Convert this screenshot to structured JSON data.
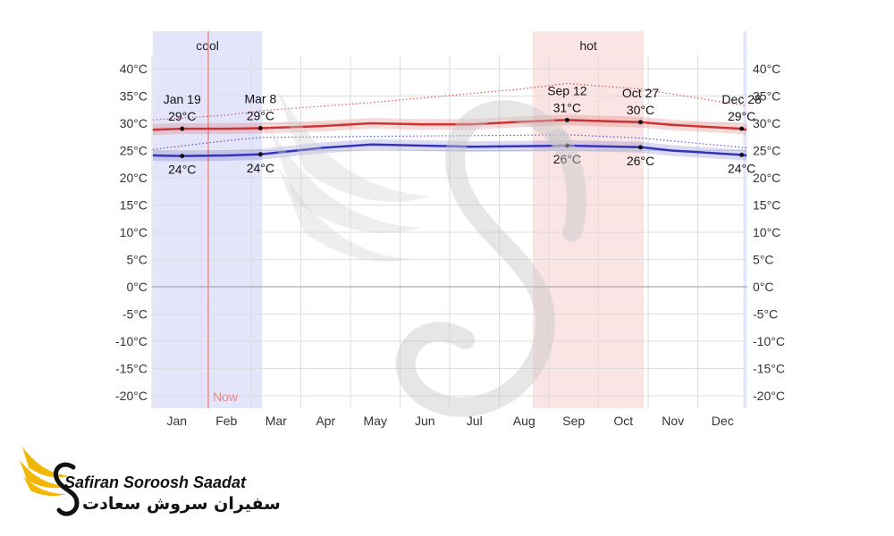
{
  "chart_data": {
    "type": "line",
    "title": "",
    "xlabel": "",
    "ylabel": "",
    "months": [
      "Jan",
      "Feb",
      "Mar",
      "Apr",
      "May",
      "Jun",
      "Jul",
      "Aug",
      "Sep",
      "Oct",
      "Nov",
      "Dec"
    ],
    "ylim": [
      -22,
      43
    ],
    "y_ticks": [
      40,
      35,
      30,
      25,
      20,
      15,
      10,
      5,
      0,
      -5,
      -10,
      -15,
      -20
    ],
    "y_tick_labels": [
      "40°C",
      "35°C",
      "30°C",
      "25°C",
      "20°C",
      "15°C",
      "10°C",
      "5°C",
      "0°C",
      "-5°C",
      "-10°C",
      "-15°C",
      "-20°C"
    ],
    "grid": true,
    "series": [
      {
        "key": "high",
        "color": "#cc3333",
        "x": [
          "Jan 1",
          "Jan 19",
          "Feb 15",
          "Mar 8",
          "Apr 15",
          "May 15",
          "Jun 15",
          "Jul 15",
          "Aug 15",
          "Sep 12",
          "Oct 27",
          "Nov 15",
          "Dec 28",
          "Dec 31"
        ],
        "values": [
          28.8,
          29.0,
          29.0,
          29.1,
          29.5,
          30.0,
          29.8,
          29.8,
          30.3,
          30.6,
          30.2,
          29.7,
          29.0,
          28.8
        ]
      },
      {
        "key": "low",
        "color": "#3333bb",
        "x": [
          "Jan 1",
          "Jan 19",
          "Feb 15",
          "Mar 8",
          "Apr 15",
          "May 15",
          "Jun 15",
          "Jul 15",
          "Aug 15",
          "Sep 12",
          "Oct 27",
          "Nov 15",
          "Dec 28",
          "Dec 31"
        ],
        "values": [
          24.1,
          24.0,
          24.1,
          24.3,
          25.5,
          26.1,
          25.9,
          25.7,
          25.8,
          25.9,
          25.6,
          25.0,
          24.2,
          24.1
        ]
      },
      {
        "key": "high-p90",
        "color": "#cc3333",
        "style": "dotted",
        "x": [
          "Jan 1",
          "Feb 15",
          "Mar 8",
          "May 15",
          "Aug 15",
          "Sep 12",
          "Oct 27",
          "Dec 31"
        ],
        "values": [
          30.6,
          31.5,
          32.3,
          33.8,
          36.3,
          37.3,
          36.3,
          33.2
        ]
      },
      {
        "key": "low-p10",
        "color": "#3333bb",
        "style": "dotted",
        "x": [
          "Jan 1",
          "Feb 15",
          "Mar 8",
          "May 15",
          "Aug 15",
          "Sep 12",
          "Oct 27",
          "Dec 31"
        ],
        "values": [
          25.2,
          26.8,
          27.4,
          27.6,
          27.8,
          27.9,
          27.3,
          25.5
        ]
      }
    ],
    "annotations": [
      {
        "date": "Jan 19",
        "temp": "29°C",
        "value": 29.0,
        "series": "high",
        "pos": "above"
      },
      {
        "date": "Mar 8",
        "temp": "29°C",
        "value": 29.1,
        "series": "high",
        "pos": "above"
      },
      {
        "date": "Sep 12",
        "temp": "31°C",
        "value": 30.6,
        "series": "high",
        "pos": "above"
      },
      {
        "date": "Oct 27",
        "temp": "30°C",
        "value": 30.2,
        "series": "high",
        "pos": "above"
      },
      {
        "date": "Dec 28",
        "temp": "29°C",
        "value": 29.0,
        "series": "high",
        "pos": "above"
      },
      {
        "date": "Jan 19",
        "temp": "24°C",
        "value": 24.0,
        "series": "low",
        "pos": "below"
      },
      {
        "date": "Mar 8",
        "temp": "24°C",
        "value": 24.3,
        "series": "low",
        "pos": "below"
      },
      {
        "date": "Sep 12",
        "temp": "26°C",
        "value": 25.9,
        "series": "low",
        "pos": "below"
      },
      {
        "date": "Oct 27",
        "temp": "26°C",
        "value": 25.6,
        "series": "low",
        "pos": "below"
      },
      {
        "date": "Dec 28",
        "temp": "24°C",
        "value": 24.2,
        "series": "low",
        "pos": "below"
      }
    ],
    "bands": [
      {
        "label": "cool",
        "from": "Jan 1",
        "to": "Mar 9",
        "color": "#e4e4fa"
      },
      {
        "label": "hot",
        "from": "Aug 22",
        "to": "Oct 29",
        "color": "#fbe4e4"
      },
      {
        "label": "",
        "from": "Dec 29",
        "to": "Dec 31",
        "color": "#e4e4fa"
      }
    ],
    "now_marker": {
      "label": "Now",
      "date": "Feb 4",
      "color": "#e88a8a"
    }
  },
  "branding": {
    "name_en": "Safiran Soroosh Saadat",
    "name_fa": "سفیران سروش سعادت",
    "logo_icon": "swan-wing-logo-icon",
    "watermark_icon": "swan-watermark-icon",
    "accent_color": "#f2b705"
  }
}
